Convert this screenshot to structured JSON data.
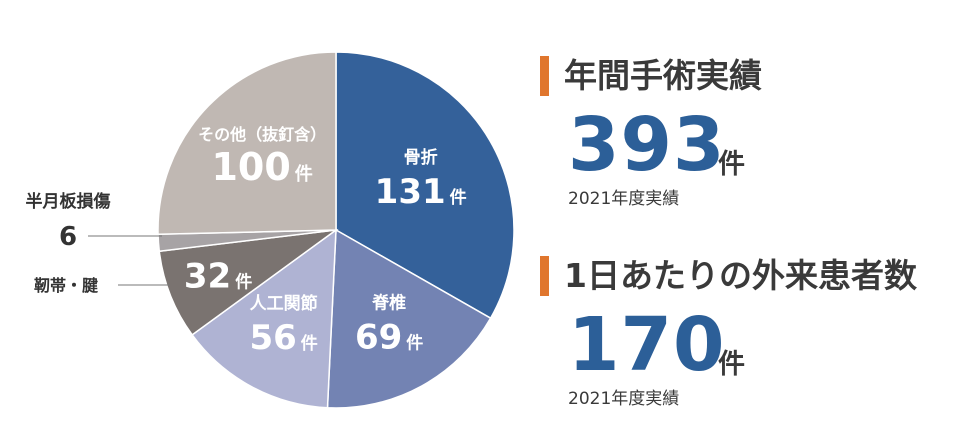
{
  "chart_data": {
    "type": "pie",
    "slices": [
      {
        "label": "骨折",
        "value": 131,
        "unit": "件",
        "color": "#34619a",
        "text_color": "#ffffff"
      },
      {
        "label": "脊椎",
        "value": 69,
        "unit": "件",
        "color": "#7383b3",
        "text_color": "#ffffff"
      },
      {
        "label": "人工関節",
        "value": 56,
        "unit": "件",
        "color": "#afb3d3",
        "text_color": "#ffffff"
      },
      {
        "label": "靭帯・腱",
        "value": 32,
        "unit": "件",
        "color": "#7a7370",
        "text_color": "#ffffff"
      },
      {
        "label": "半月板損傷",
        "value": 6,
        "unit": "",
        "color": "#a7a3a5",
        "text_color": "#333333"
      },
      {
        "label": "その他（抜釘含）",
        "value": 100,
        "unit": "件",
        "color": "#c0b8b3",
        "text_color": "#ffffff"
      }
    ]
  },
  "stats": [
    {
      "title": "年間手術実績",
      "value": "393",
      "unit": "件",
      "note": "2021年度実績"
    },
    {
      "title": "1日あたりの外来患者数",
      "value": "170",
      "unit": "件",
      "note": "2021年度実績"
    }
  ],
  "colors": {
    "accent_bar": "#e0762e",
    "number": "#2c5f98"
  }
}
